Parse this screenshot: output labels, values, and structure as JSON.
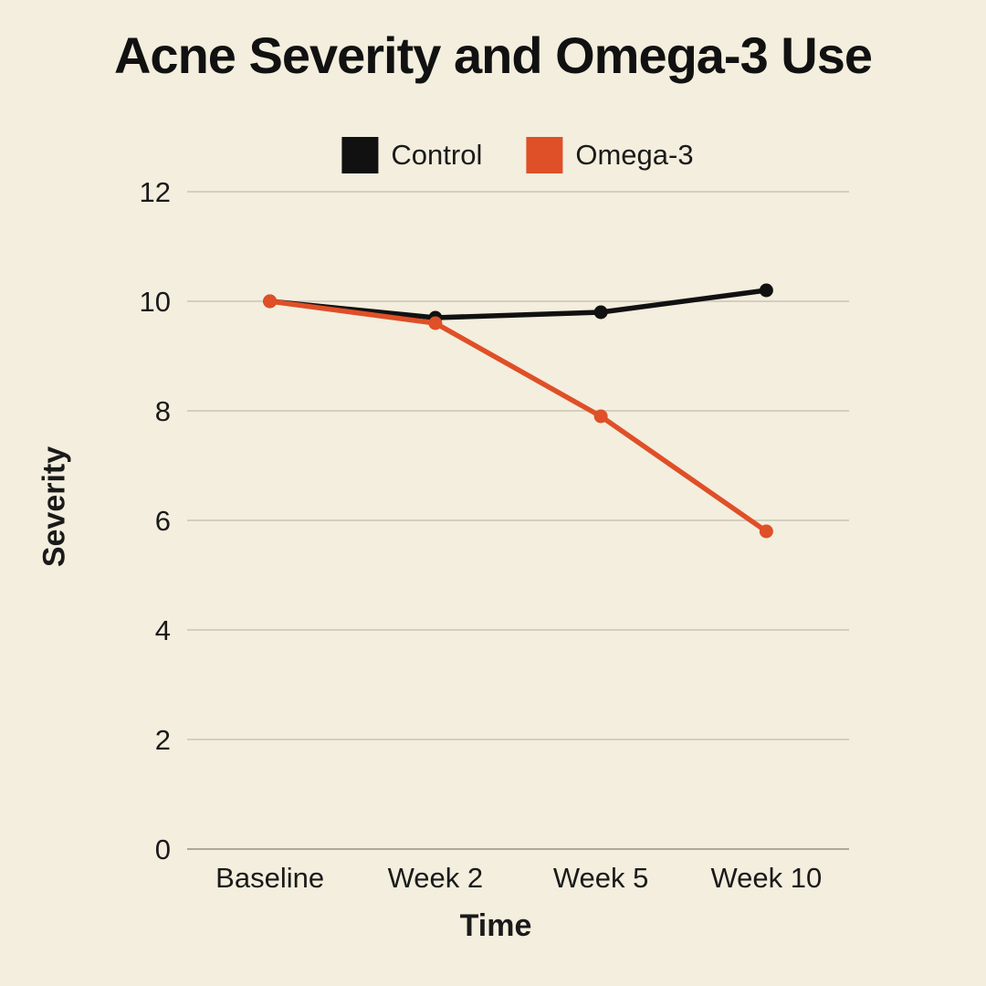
{
  "page": {
    "background_color": "#F3EEDD",
    "text_color": "#1a1a1a",
    "grid_color": "#D3CFC0",
    "axis_line_color": "#ABA79B"
  },
  "chart_data": {
    "type": "line",
    "title": "Acne Severity and Omega-3 Use",
    "xlabel": "Time",
    "ylabel": "Severity",
    "categories": [
      "Baseline",
      "Week 2",
      "Week 5",
      "Week 10"
    ],
    "series": [
      {
        "name": "Control",
        "color": "#111111",
        "values": [
          10,
          9.7,
          9.8,
          10.2
        ]
      },
      {
        "name": "Omega-3",
        "color": "#DF4F28",
        "values": [
          10,
          9.6,
          7.9,
          5.8
        ]
      }
    ],
    "ylim": [
      0,
      12
    ],
    "yticks": [
      0,
      2,
      4,
      6,
      8,
      10,
      12
    ],
    "grid": "horizontal",
    "legend_position": "top-center",
    "marker": "circle"
  }
}
